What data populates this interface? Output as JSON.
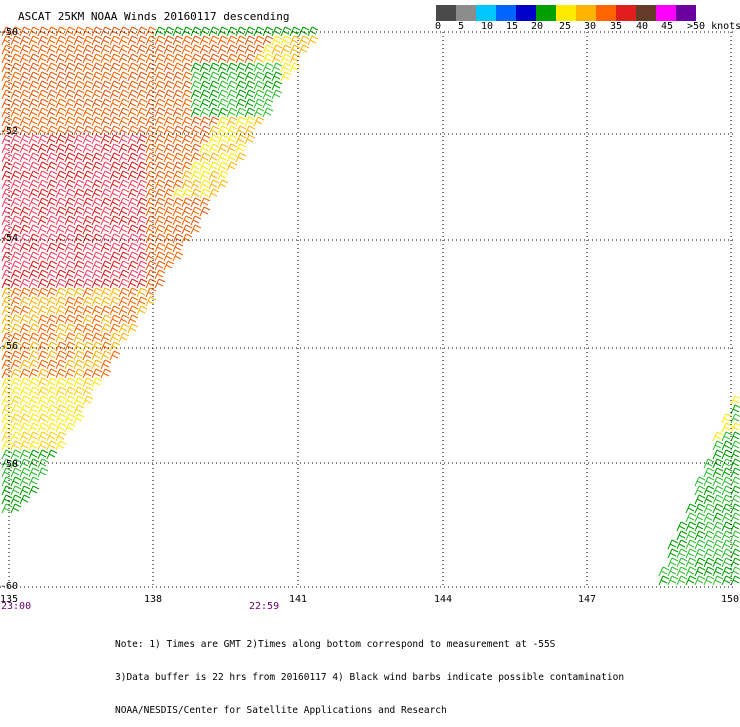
{
  "title": "ASCAT 25KM NOAA Winds 20160117 descending",
  "legend": {
    "colors": [
      "#4a4a4a",
      "#8c8c8c",
      "#00c8ff",
      "#0064ff",
      "#0000c8",
      "#00a000",
      "#ffeb00",
      "#ffb400",
      "#ff6400",
      "#e11e1e",
      "#643c28",
      "#ff00ff",
      "#6a00a0"
    ],
    "labels": [
      "0",
      "5",
      "10",
      "15",
      "20",
      "25",
      "30",
      "35",
      "40",
      "45",
      ">50 knots"
    ]
  },
  "map": {
    "lon_labels": [
      "135",
      "138",
      "141",
      "144",
      "147",
      "150"
    ],
    "lat_labels": [
      "-50",
      "-52",
      "-54",
      "-56",
      "-58",
      "-60"
    ],
    "lon_range": [
      135,
      150
    ],
    "lat_range": [
      -50,
      -60
    ],
    "grid": true,
    "time_labels": [
      "23:00",
      "22:59"
    ]
  },
  "notes": [
    "Note: 1) Times are GMT 2)Times along bottom correspond to measurement at -55S",
    "      3)Data buffer is 22 hrs from 20160117 4) Black wind barbs indicate possible contamination",
    "                          NOAA/NESDIS/Center for Satellite Applications and Research"
  ]
}
